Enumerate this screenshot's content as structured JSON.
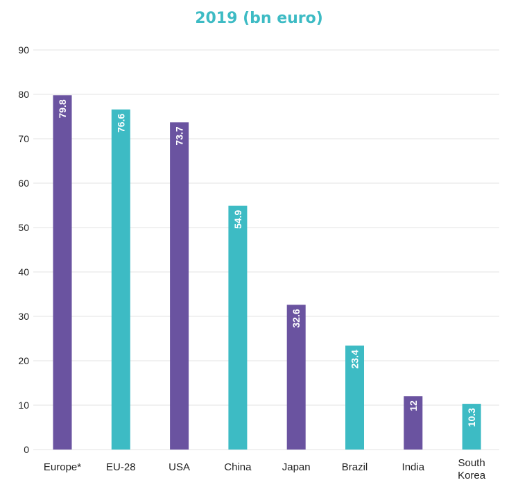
{
  "colors": {
    "title": "#3dbbc4",
    "purple": "#6a53a0",
    "teal": "#3dbbc4",
    "grid": "#e3e3e3",
    "axis_text": "#222222",
    "bar_label": "#ffffff"
  },
  "chart_data": {
    "type": "bar",
    "title": "2019 (bn euro)",
    "categories": [
      "Europe*",
      "EU-28",
      "USA",
      "China",
      "Japan",
      "Brazil",
      "India",
      "South Korea"
    ],
    "values": [
      79.8,
      76.6,
      73.7,
      54.9,
      32.6,
      23.4,
      12,
      10.3
    ],
    "value_labels": [
      "79.8",
      "76.6",
      "73.7",
      "54.9",
      "32.6",
      "23.4",
      "12",
      "10.3"
    ],
    "bar_colors": [
      "purple",
      "teal",
      "purple",
      "teal",
      "purple",
      "teal",
      "purple",
      "teal"
    ],
    "ylim": [
      0,
      90
    ],
    "yticks": [
      "0",
      "10",
      "20",
      "30",
      "40",
      "50",
      "60",
      "70",
      "80",
      "90"
    ],
    "grid": true,
    "xlabel": "",
    "ylabel": ""
  }
}
